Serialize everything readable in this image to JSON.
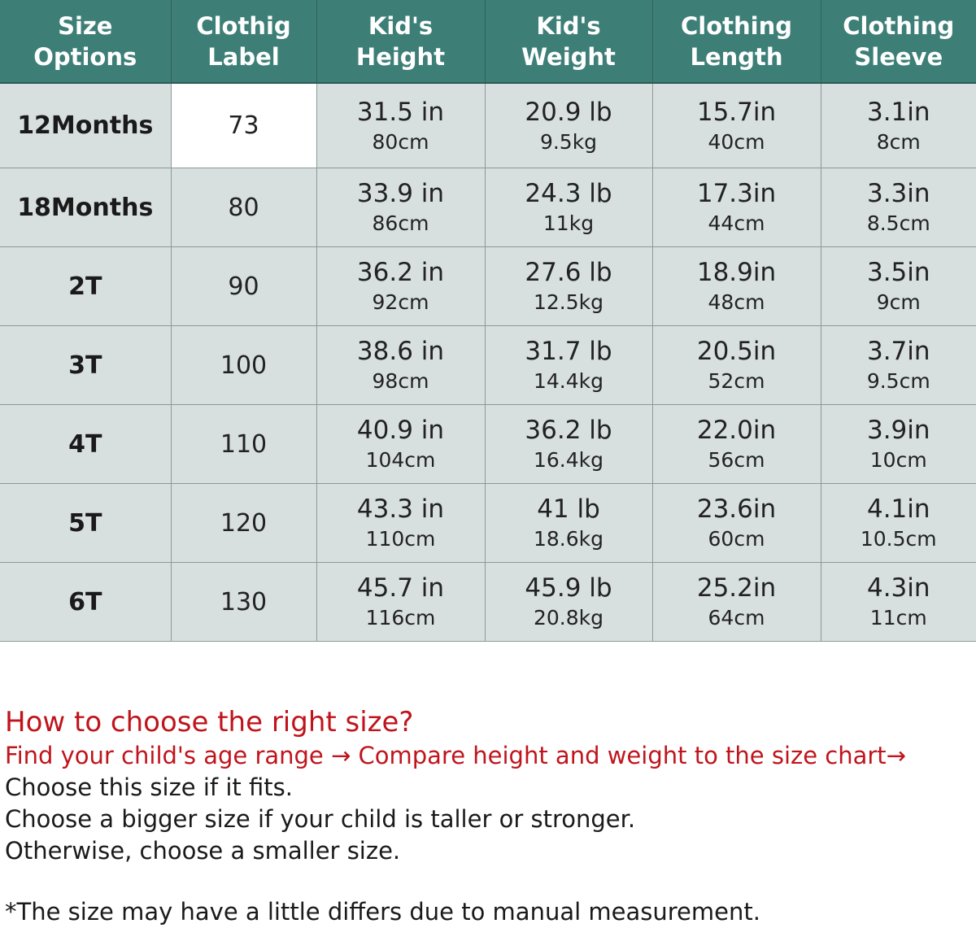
{
  "table": {
    "headers": [
      {
        "line1": "Size",
        "line2": "Options"
      },
      {
        "line1": "Clothig",
        "line2": "Label"
      },
      {
        "line1": "Kid's",
        "line2": "Height"
      },
      {
        "line1": "Kid's",
        "line2": "Weight"
      },
      {
        "line1": "Clothing",
        "line2": "Length"
      },
      {
        "line1": "Clothing",
        "line2": "Sleeve"
      }
    ],
    "rows": [
      {
        "size": "12Months",
        "label": "73",
        "height_in": "31.5 in",
        "height_cm": "80cm",
        "weight_lb": "20.9 lb",
        "weight_kg": "9.5kg",
        "length_in": "15.7in",
        "length_cm": "40cm",
        "sleeve_in": "3.1in",
        "sleeve_cm": "8cm"
      },
      {
        "size": "18Months",
        "label": "80",
        "height_in": "33.9 in",
        "height_cm": "86cm",
        "weight_lb": "24.3 lb",
        "weight_kg": "11kg",
        "length_in": "17.3in",
        "length_cm": "44cm",
        "sleeve_in": "3.3in",
        "sleeve_cm": "8.5cm"
      },
      {
        "size": "2T",
        "label": "90",
        "height_in": "36.2 in",
        "height_cm": "92cm",
        "weight_lb": "27.6 lb",
        "weight_kg": "12.5kg",
        "length_in": "18.9in",
        "length_cm": "48cm",
        "sleeve_in": "3.5in",
        "sleeve_cm": "9cm"
      },
      {
        "size": "3T",
        "label": "100",
        "height_in": "38.6 in",
        "height_cm": "98cm",
        "weight_lb": "31.7 lb",
        "weight_kg": "14.4kg",
        "length_in": "20.5in",
        "length_cm": "52cm",
        "sleeve_in": "3.7in",
        "sleeve_cm": "9.5cm"
      },
      {
        "size": "4T",
        "label": "110",
        "height_in": "40.9 in",
        "height_cm": "104cm",
        "weight_lb": "36.2 lb",
        "weight_kg": "16.4kg",
        "length_in": "22.0in",
        "length_cm": "56cm",
        "sleeve_in": "3.9in",
        "sleeve_cm": "10cm"
      },
      {
        "size": "5T",
        "label": "120",
        "height_in": "43.3 in",
        "height_cm": "110cm",
        "weight_lb": "41 lb",
        "weight_kg": "18.6kg",
        "length_in": "23.6in",
        "length_cm": "60cm",
        "sleeve_in": "4.1in",
        "sleeve_cm": "10.5cm"
      },
      {
        "size": "6T",
        "label": "130",
        "height_in": "45.7 in",
        "height_cm": "116cm",
        "weight_lb": "45.9 lb",
        "weight_kg": "20.8kg",
        "length_in": "25.2in",
        "length_cm": "64cm",
        "sleeve_in": "4.3in",
        "sleeve_cm": "11cm"
      }
    ]
  },
  "guide": {
    "title": "How to choose the right size?",
    "steps": "Find your child's age range → Compare height and weight to the size chart→",
    "lines": [
      "Choose this size if it fits.",
      "Choose a bigger size if your child is taller or stronger.",
      "Otherwise, choose a smaller size."
    ]
  },
  "note": "*The size  may have a little differs due to manual measurement.",
  "colors": {
    "header_bg": "#3d7f77",
    "header_text": "#ffffff",
    "cell_bg": "#d8dfdf",
    "label_cell_bg": "#ffffff",
    "accent_red": "#c0141c"
  }
}
